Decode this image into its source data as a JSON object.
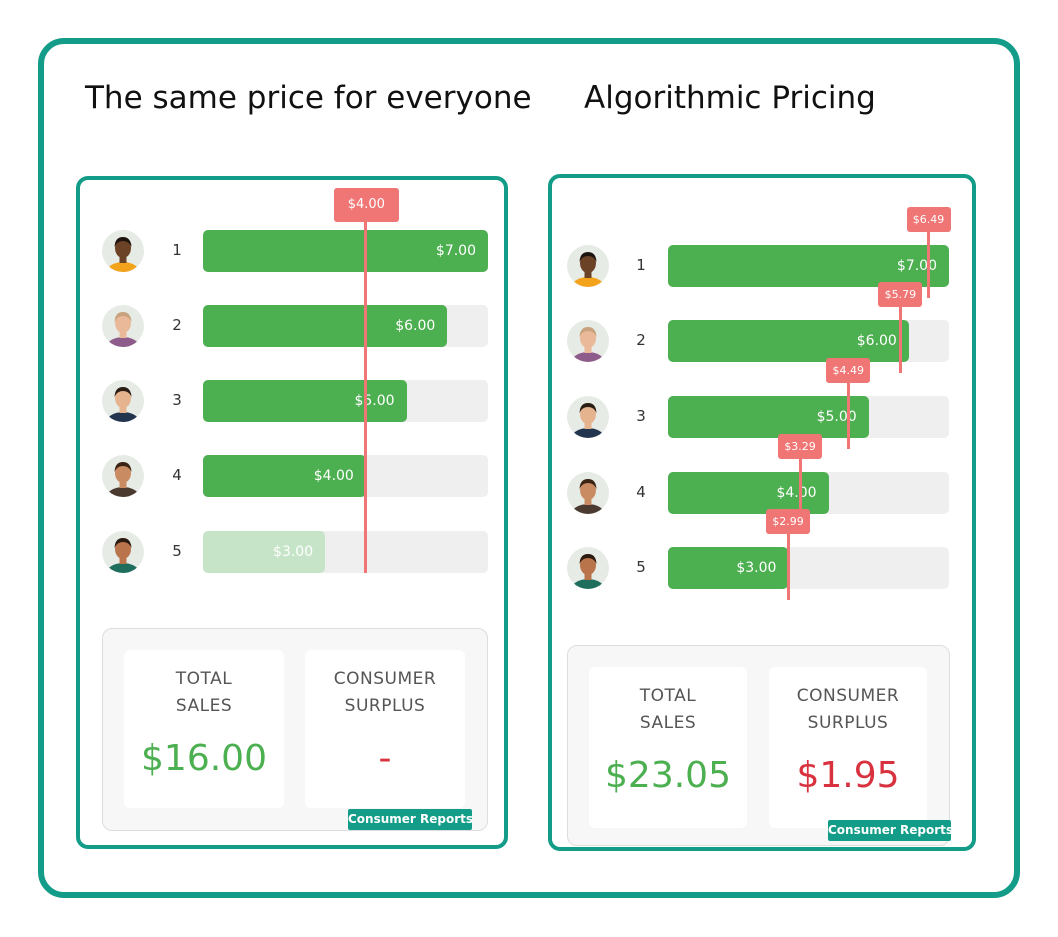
{
  "panels": [
    {
      "title": "The same price for everyone",
      "price": {
        "value": 4,
        "label": "$4.00"
      },
      "customers": [
        {
          "rank": 1,
          "value": 7,
          "label": "$7.00"
        },
        {
          "rank": 2,
          "value": 6,
          "label": "$6.00"
        },
        {
          "rank": 3,
          "value": 5,
          "label": "$5.00"
        },
        {
          "rank": 4,
          "value": 4,
          "label": "$4.00"
        },
        {
          "rank": 5,
          "value": 3,
          "label": "$3.00"
        }
      ],
      "summary": {
        "total_sales": {
          "heading": "TOTAL SALES",
          "amount": "$16.00"
        },
        "consumer_surplus": {
          "heading": "CONSUMER SURPLUS",
          "amount": "-"
        }
      },
      "badge": "Consumer Reports"
    },
    {
      "title": "Algorithmic Pricing",
      "customers": [
        {
          "rank": 1,
          "value": 7,
          "label": "$7.00",
          "price": {
            "value": 6.49,
            "label": "$6.49"
          }
        },
        {
          "rank": 2,
          "value": 6,
          "label": "$6.00",
          "price": {
            "value": 5.79,
            "label": "$5.79"
          }
        },
        {
          "rank": 3,
          "value": 5,
          "label": "$5.00",
          "price": {
            "value": 4.49,
            "label": "$4.49"
          }
        },
        {
          "rank": 4,
          "value": 4,
          "label": "$4.00",
          "price": {
            "value": 3.29,
            "label": "$3.29"
          }
        },
        {
          "rank": 5,
          "value": 3,
          "label": "$3.00",
          "price": {
            "value": 2.99,
            "label": "$2.99"
          }
        }
      ],
      "summary": {
        "total_sales": {
          "heading": "TOTAL SALES",
          "amount": "$23.05"
        },
        "consumer_surplus": {
          "heading": "CONSUMER SURPLUS",
          "amount": "$1.95"
        }
      },
      "badge": "Consumer Reports"
    }
  ]
}
